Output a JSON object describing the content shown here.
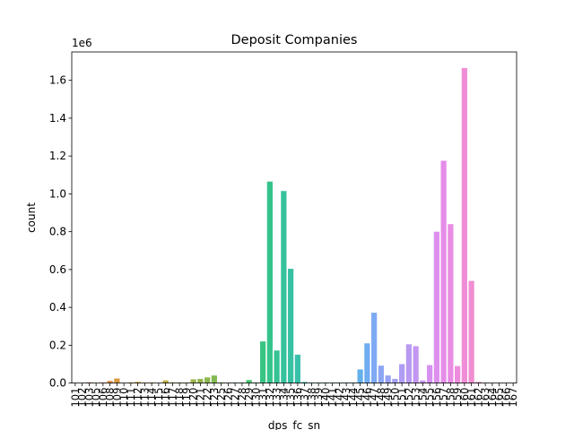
{
  "chart_data": {
    "type": "bar",
    "title": "Deposit Companies",
    "xlabel": "dps_fc_sn",
    "ylabel": "count",
    "offset_label": "1e6",
    "ylim": [
      0,
      1.75
    ],
    "y_ticks": [
      0.0,
      0.2,
      0.4,
      0.6,
      0.8,
      1.0,
      1.2,
      1.4,
      1.6
    ],
    "y_tick_labels": [
      "0.0",
      "0.2",
      "0.4",
      "0.6",
      "0.8",
      "1.0",
      "1.2",
      "1.4",
      "1.6"
    ],
    "grid": false,
    "legend": "none",
    "categories": [
      "101",
      "102",
      "103",
      "105",
      "106",
      "108",
      "109",
      "110",
      "111",
      "112",
      "113",
      "114",
      "115",
      "116",
      "117",
      "118",
      "119",
      "120",
      "121",
      "122",
      "123",
      "125",
      "126",
      "127",
      "128",
      "129",
      "130",
      "131",
      "132",
      "133",
      "134",
      "135",
      "136",
      "137",
      "138",
      "139",
      "140",
      "141",
      "142",
      "143",
      "144",
      "145",
      "146",
      "147",
      "148",
      "149",
      "150",
      "151",
      "152",
      "153",
      "154",
      "155",
      "156",
      "157",
      "158",
      "159",
      "160",
      "161",
      "162",
      "163",
      "164",
      "165",
      "166",
      "167"
    ],
    "values": [
      0,
      0,
      0.004,
      0,
      0.003,
      0.012,
      0.024,
      0,
      0.003,
      0.006,
      0.002,
      0.003,
      0,
      0.014,
      0.003,
      0.003,
      0.002,
      0.02,
      0.022,
      0.03,
      0.04,
      0.003,
      0.002,
      0.002,
      0.002,
      0.016,
      0.003,
      0.22,
      1.065,
      0.172,
      1.015,
      0.604,
      0.15,
      0.006,
      0.002,
      0.002,
      0.002,
      0.002,
      0.002,
      0.002,
      0.002,
      0.072,
      0.21,
      0.372,
      0.092,
      0.04,
      0.022,
      0.1,
      0.205,
      0.195,
      0.014,
      0.095,
      0.8,
      1.175,
      0.84,
      0.09,
      1.665,
      0.54,
      0.006,
      0,
      0,
      0,
      0,
      0
    ],
    "colors": [
      "#ea8d85",
      "#e98e7c",
      "#e88f72",
      "#e69167",
      "#e3935c",
      "#e0954f",
      "#dc983e",
      "#d89b25",
      "#d49d1a",
      "#cf9f27",
      "#caa22f",
      "#c5a434",
      "#bfa639",
      "#b9a93d",
      "#b3ab41",
      "#acad45",
      "#a5b048",
      "#9db34b",
      "#95b54d",
      "#8cb850",
      "#82ba52",
      "#77bc54",
      "#6abf56",
      "#5cc15b",
      "#4fc365",
      "#45c46f",
      "#3ec479",
      "#38c483",
      "#35c38c",
      "#35c294",
      "#36c29c",
      "#37c1a3",
      "#39c0aa",
      "#3bbfb1",
      "#3dbeb8",
      "#40bdbf",
      "#43bbc6",
      "#47bacd",
      "#4cb8d4",
      "#52b6db",
      "#5ab3e3",
      "#64b0ea",
      "#70adf0",
      "#7eaaf3",
      "#8ca6f3",
      "#98a2f3",
      "#a49ff3",
      "#af9cf3",
      "#b999f2",
      "#c396f2",
      "#cc93f2",
      "#d590f0",
      "#dd8fed",
      "#e48de8",
      "#e98ce3",
      "#ed8cdd",
      "#f08dd7",
      "#f18dd1",
      "#f28ecb",
      "#f28fc4",
      "#f290bd",
      "#f291b6",
      "#f192ae",
      "#ef93a6"
    ]
  }
}
